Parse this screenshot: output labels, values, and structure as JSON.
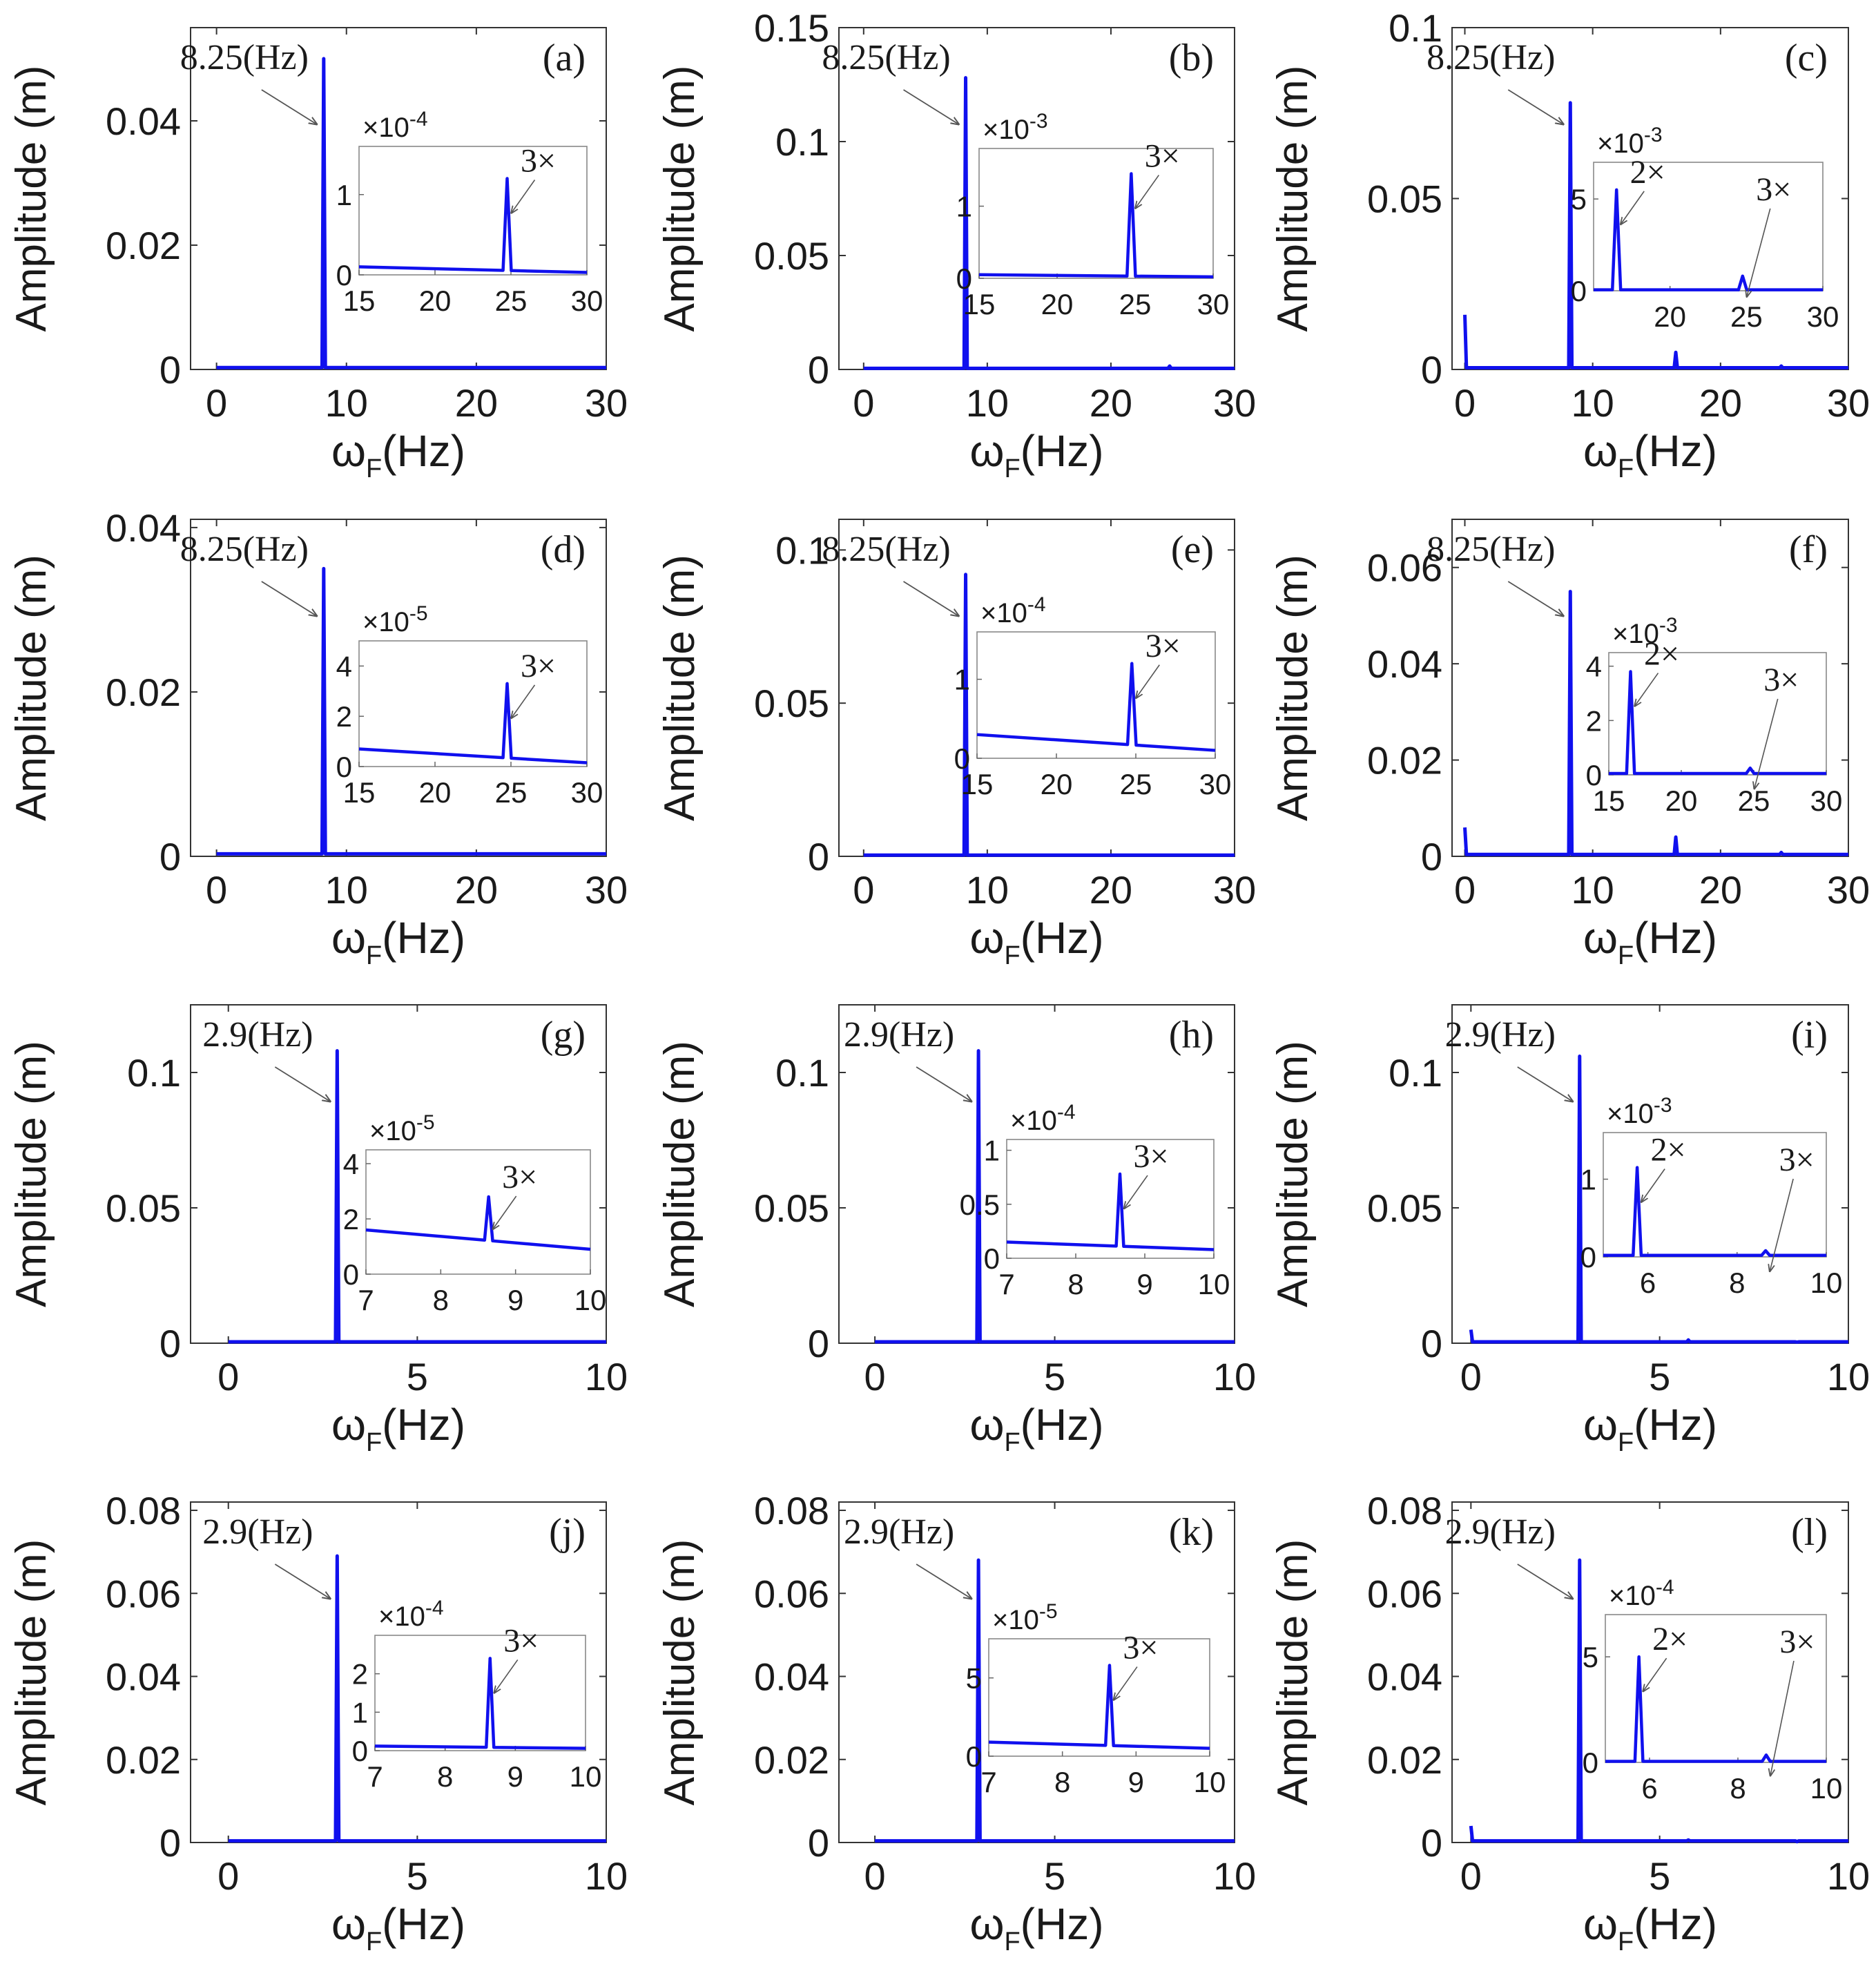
{
  "figure": {
    "y_axis_label": "Amplitude (m)",
    "x_axis_label_main": "ω",
    "x_axis_label_sub": "F",
    "x_axis_label_unit": "(Hz)",
    "colors": {
      "line": "#1010ee",
      "axis": "#333333",
      "text": "#1a1a1a",
      "arrow": "#555555"
    }
  },
  "chart_data": [
    {
      "id": "a",
      "panel_label": "(a)",
      "type": "line",
      "xlim": [
        -2,
        30
      ],
      "ylim": [
        0,
        0.055
      ],
      "xticks": [
        0,
        10,
        20,
        30
      ],
      "yticks": [
        0,
        0.02,
        0.04
      ],
      "peak_label": "8.25(Hz)",
      "peak_x": 8.25,
      "peak_y": 0.05,
      "baseline": 0.0003,
      "dc": null,
      "harm2": null,
      "harm3": null,
      "inset": {
        "exponent": "-4",
        "xlim": [
          15,
          30
        ],
        "ylim": [
          0,
          1.6
        ],
        "xticks": [
          15,
          20,
          25,
          30
        ],
        "yticks": [
          0,
          1
        ],
        "base_start": 0.1,
        "base_end": 0.03,
        "peaks": [
          {
            "label": "3×",
            "x": 24.75,
            "y": 1.2
          }
        ]
      }
    },
    {
      "id": "b",
      "panel_label": "(b)",
      "type": "line",
      "xlim": [
        -2,
        30
      ],
      "ylim": [
        0,
        0.15
      ],
      "xticks": [
        0,
        10,
        20,
        30
      ],
      "yticks": [
        0,
        0.05,
        0.1,
        0.15
      ],
      "peak_label": "8.25(Hz)",
      "peak_x": 8.25,
      "peak_y": 0.128,
      "baseline": 0.0005,
      "dc": null,
      "harm2": null,
      "harm3": 0.0015,
      "inset": {
        "exponent": "-3",
        "xlim": [
          15,
          30
        ],
        "ylim": [
          0,
          1.8
        ],
        "xticks": [
          15,
          20,
          25,
          30
        ],
        "yticks": [
          0,
          1
        ],
        "base_start": 0.05,
        "base_end": 0.02,
        "peaks": [
          {
            "label": "3×",
            "x": 24.75,
            "y": 1.45
          }
        ]
      }
    },
    {
      "id": "c",
      "panel_label": "(c)",
      "type": "line",
      "xlim": [
        -1,
        30
      ],
      "ylim": [
        0,
        0.1
      ],
      "xticks": [
        0,
        10,
        20,
        30
      ],
      "yticks": [
        0,
        0.05,
        0.1
      ],
      "peak_label": "8.25(Hz)",
      "peak_x": 8.25,
      "peak_y": 0.078,
      "baseline": 0.0005,
      "dc": 0.016,
      "harm2": 0.005,
      "harm3": 0.001,
      "inset": {
        "exponent": "-3",
        "xlim": [
          15,
          30
        ],
        "ylim": [
          0,
          7
        ],
        "xticks": [
          20,
          25,
          30
        ],
        "yticks": [
          0,
          5
        ],
        "base_start": 0.05,
        "base_end": 0.05,
        "peaks": [
          {
            "label": "2×",
            "x": 16.5,
            "y": 5.5
          },
          {
            "label": "3×",
            "x": 24.75,
            "y": 0.8
          }
        ]
      }
    },
    {
      "id": "d",
      "panel_label": "(d)",
      "type": "line",
      "xlim": [
        -2,
        30
      ],
      "ylim": [
        0,
        0.041
      ],
      "xticks": [
        0,
        10,
        20,
        30
      ],
      "yticks": [
        0,
        0.02,
        0.04
      ],
      "peak_label": "8.25(Hz)",
      "peak_x": 8.25,
      "peak_y": 0.035,
      "baseline": 0.0003,
      "dc": null,
      "harm2": null,
      "harm3": null,
      "inset": {
        "exponent": "-5",
        "xlim": [
          15,
          30
        ],
        "ylim": [
          0,
          5
        ],
        "xticks": [
          15,
          20,
          25,
          30
        ],
        "yticks": [
          0,
          2,
          4
        ],
        "base_start": 0.7,
        "base_end": 0.15,
        "peaks": [
          {
            "label": "3×",
            "x": 24.75,
            "y": 3.3
          }
        ]
      }
    },
    {
      "id": "e",
      "panel_label": "(e)",
      "type": "line",
      "xlim": [
        -2,
        30
      ],
      "ylim": [
        0,
        0.11
      ],
      "xticks": [
        0,
        10,
        20,
        30
      ],
      "yticks": [
        0,
        0.05,
        0.1
      ],
      "peak_label": "8.25(Hz)",
      "peak_x": 8.25,
      "peak_y": 0.092,
      "baseline": 0.0004,
      "dc": null,
      "harm2": null,
      "harm3": null,
      "inset": {
        "exponent": "-4",
        "xlim": [
          15,
          30
        ],
        "ylim": [
          0,
          1.6
        ],
        "xticks": [
          15,
          20,
          25,
          30
        ],
        "yticks": [
          0,
          1
        ],
        "base_start": 0.3,
        "base_end": 0.1,
        "peaks": [
          {
            "label": "3×",
            "x": 24.75,
            "y": 1.2
          }
        ]
      }
    },
    {
      "id": "f",
      "panel_label": "(f)",
      "type": "line",
      "xlim": [
        -1,
        30
      ],
      "ylim": [
        0,
        0.07
      ],
      "xticks": [
        0,
        10,
        20,
        30
      ],
      "yticks": [
        0,
        0.02,
        0.04,
        0.06
      ],
      "peak_label": "8.25(Hz)",
      "peak_x": 8.25,
      "peak_y": 0.055,
      "baseline": 0.0004,
      "dc": 0.006,
      "harm2": 0.004,
      "harm3": 0.0008,
      "inset": {
        "exponent": "-3",
        "xlim": [
          15,
          30
        ],
        "ylim": [
          0,
          4.5
        ],
        "xticks": [
          15,
          20,
          25,
          30
        ],
        "yticks": [
          0,
          2,
          4
        ],
        "base_start": 0.05,
        "base_end": 0.05,
        "peaks": [
          {
            "label": "2×",
            "x": 16.5,
            "y": 3.8
          },
          {
            "label": "3×",
            "x": 24.75,
            "y": 0.25
          }
        ]
      }
    },
    {
      "id": "g",
      "panel_label": "(g)",
      "type": "line",
      "xlim": [
        -1,
        10
      ],
      "ylim": [
        0,
        0.125
      ],
      "xticks": [
        0,
        5,
        10
      ],
      "yticks": [
        0,
        0.05,
        0.1
      ],
      "peak_label": "2.9(Hz)",
      "peak_x": 2.88,
      "peak_y": 0.108,
      "baseline": 0.0005,
      "dc": null,
      "harm2": null,
      "harm3": null,
      "inset": {
        "exponent": "-5",
        "xlim": [
          7,
          10
        ],
        "ylim": [
          0,
          4.5
        ],
        "xticks": [
          7,
          8,
          9,
          10
        ],
        "yticks": [
          0,
          2,
          4
        ],
        "base_start": 1.6,
        "base_end": 0.9,
        "peaks": [
          {
            "label": "3×",
            "x": 8.64,
            "y": 2.8
          }
        ]
      }
    },
    {
      "id": "h",
      "panel_label": "(h)",
      "type": "line",
      "xlim": [
        -1,
        10
      ],
      "ylim": [
        0,
        0.125
      ],
      "xticks": [
        0,
        5,
        10
      ],
      "yticks": [
        0,
        0.05,
        0.1
      ],
      "peak_label": "2.9(Hz)",
      "peak_x": 2.88,
      "peak_y": 0.108,
      "baseline": 0.0005,
      "dc": null,
      "harm2": null,
      "harm3": null,
      "inset": {
        "exponent": "-4",
        "xlim": [
          7,
          10
        ],
        "ylim": [
          0,
          1.1
        ],
        "xticks": [
          7,
          8,
          9,
          10
        ],
        "yticks": [
          0,
          0.5,
          1
        ],
        "base_start": 0.15,
        "base_end": 0.08,
        "peaks": [
          {
            "label": "3×",
            "x": 8.64,
            "y": 0.78
          }
        ]
      }
    },
    {
      "id": "i",
      "panel_label": "(i)",
      "type": "line",
      "xlim": [
        -0.5,
        10
      ],
      "ylim": [
        0,
        0.125
      ],
      "xticks": [
        0,
        5,
        10
      ],
      "yticks": [
        0,
        0.05,
        0.1
      ],
      "peak_label": "2.9(Hz)",
      "peak_x": 2.88,
      "peak_y": 0.106,
      "baseline": 0.0005,
      "dc": 0.005,
      "harm2": 0.0012,
      "harm3": 0.0004,
      "inset": {
        "exponent": "-3",
        "xlim": [
          5,
          10
        ],
        "ylim": [
          0,
          1.6
        ],
        "xticks": [
          6,
          8,
          10
        ],
        "yticks": [
          0,
          1
        ],
        "base_start": 0.02,
        "base_end": 0.02,
        "peaks": [
          {
            "label": "2×",
            "x": 5.76,
            "y": 1.15
          },
          {
            "label": "3×",
            "x": 8.64,
            "y": 0.08
          }
        ]
      }
    },
    {
      "id": "j",
      "panel_label": "(j)",
      "type": "line",
      "xlim": [
        -1,
        10
      ],
      "ylim": [
        0,
        0.082
      ],
      "xticks": [
        0,
        5,
        10
      ],
      "yticks": [
        0,
        0.02,
        0.04,
        0.06,
        0.08
      ],
      "peak_label": "2.9(Hz)",
      "peak_x": 2.88,
      "peak_y": 0.069,
      "baseline": 0.0004,
      "dc": null,
      "harm2": null,
      "harm3": null,
      "inset": {
        "exponent": "-4",
        "xlim": [
          7,
          10
        ],
        "ylim": [
          0,
          3
        ],
        "xticks": [
          7,
          8,
          9,
          10
        ],
        "yticks": [
          0,
          1,
          2
        ],
        "base_start": 0.12,
        "base_end": 0.06,
        "peaks": [
          {
            "label": "3×",
            "x": 8.64,
            "y": 2.4
          }
        ]
      }
    },
    {
      "id": "k",
      "panel_label": "(k)",
      "type": "line",
      "xlim": [
        -1,
        10
      ],
      "ylim": [
        0,
        0.082
      ],
      "xticks": [
        0,
        5,
        10
      ],
      "yticks": [
        0,
        0.02,
        0.04,
        0.06,
        0.08
      ],
      "peak_label": "2.9(Hz)",
      "peak_x": 2.88,
      "peak_y": 0.068,
      "baseline": 0.0004,
      "dc": null,
      "harm2": null,
      "harm3": null,
      "inset": {
        "exponent": "-5",
        "xlim": [
          7,
          10
        ],
        "ylim": [
          0,
          7.5
        ],
        "xticks": [
          7,
          8,
          9,
          10
        ],
        "yticks": [
          0,
          5
        ],
        "base_start": 0.9,
        "base_end": 0.5,
        "peaks": [
          {
            "label": "3×",
            "x": 8.64,
            "y": 5.8
          }
        ]
      }
    },
    {
      "id": "l",
      "panel_label": "(l)",
      "type": "line",
      "xlim": [
        -0.5,
        10
      ],
      "ylim": [
        0,
        0.082
      ],
      "xticks": [
        0,
        5,
        10
      ],
      "yticks": [
        0,
        0.02,
        0.04,
        0.06,
        0.08
      ],
      "peak_label": "2.9(Hz)",
      "peak_x": 2.88,
      "peak_y": 0.068,
      "baseline": 0.0004,
      "dc": 0.004,
      "harm2": 0.0006,
      "harm3": 0.0002,
      "inset": {
        "exponent": "-4",
        "xlim": [
          5,
          10
        ],
        "ylim": [
          0,
          7
        ],
        "xticks": [
          6,
          8,
          10
        ],
        "yticks": [
          0,
          5
        ],
        "base_start": 0.05,
        "base_end": 0.05,
        "peaks": [
          {
            "label": "2×",
            "x": 5.76,
            "y": 5.0
          },
          {
            "label": "3×",
            "x": 8.64,
            "y": 0.35
          }
        ]
      }
    }
  ]
}
